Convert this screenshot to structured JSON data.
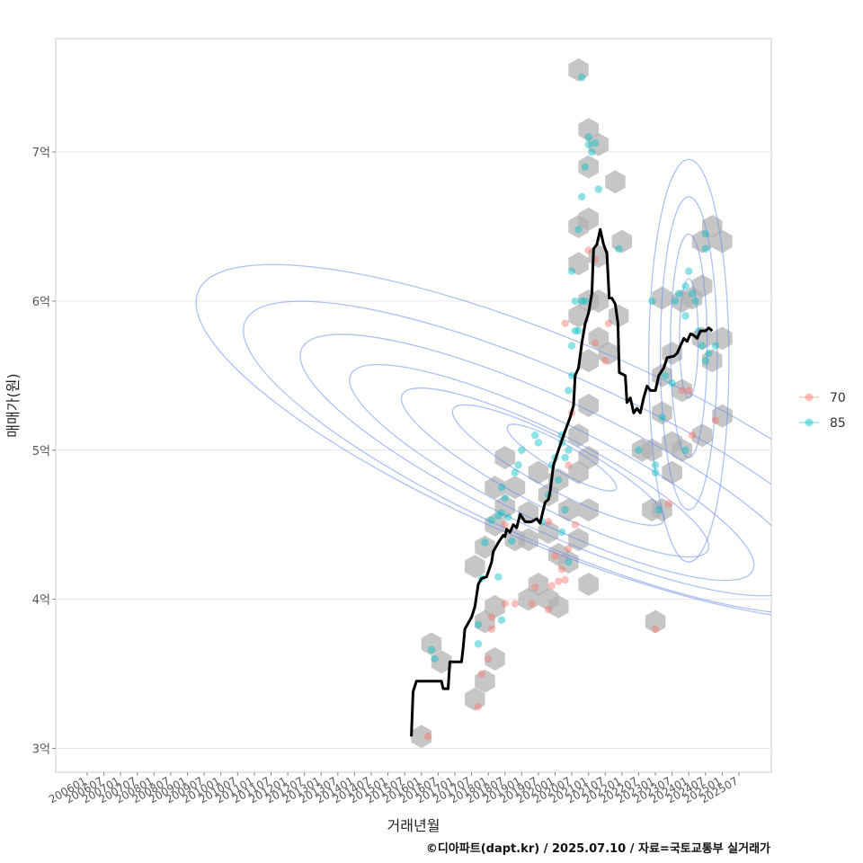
{
  "chart_data": {
    "type": "scatter",
    "xlabel": "거래년월",
    "ylabel": "매매가(원)",
    "x_ticks": [
      "200601",
      "200607",
      "200701",
      "200707",
      "200801",
      "200807",
      "200901",
      "200907",
      "201001",
      "201007",
      "201101",
      "201107",
      "201201",
      "201207",
      "201301",
      "201307",
      "201401",
      "201407",
      "201501",
      "201507",
      "201601",
      "201607",
      "201701",
      "201707",
      "201801",
      "201807",
      "201901",
      "201907",
      "202001",
      "202007",
      "202101",
      "202107",
      "202201",
      "202207",
      "202301",
      "202307",
      "202401",
      "202407",
      "202501",
      "202507"
    ],
    "y_ticks": [
      {
        "value": 3,
        "label": "3억"
      },
      {
        "value": 4,
        "label": "4억"
      },
      {
        "value": 5,
        "label": "5억"
      },
      {
        "value": 6,
        "label": "6억"
      },
      {
        "value": 7,
        "label": "7억"
      }
    ],
    "ylim": [
      2.84,
      7.76
    ],
    "grid": true,
    "legend_position": "right",
    "legend": [
      {
        "name": "70",
        "color": "#F8766D"
      },
      {
        "name": "85",
        "color": "#00BFC4"
      }
    ],
    "colors": {
      "hex": "#b3b3b3",
      "contour": "#6f8ee8",
      "trend": "#000000"
    },
    "hex_bins": [
      [
        2016.0,
        3.08
      ],
      [
        2016.3,
        3.7
      ],
      [
        2016.6,
        3.58
      ],
      [
        2017.6,
        3.33
      ],
      [
        2017.9,
        3.45
      ],
      [
        2018.2,
        3.6
      ],
      [
        2017.9,
        3.85
      ],
      [
        2018.2,
        3.95
      ],
      [
        2017.6,
        4.22
      ],
      [
        2017.9,
        4.35
      ],
      [
        2018.2,
        4.5
      ],
      [
        2018.5,
        4.62
      ],
      [
        2018.8,
        4.75
      ],
      [
        2018.5,
        4.95
      ],
      [
        2018.2,
        4.75
      ],
      [
        2018.8,
        4.4
      ],
      [
        2019.2,
        4.58
      ],
      [
        2019.5,
        4.85
      ],
      [
        2019.8,
        4.7
      ],
      [
        2019.2,
        4.0
      ],
      [
        2019.5,
        4.1
      ],
      [
        2019.8,
        4.0
      ],
      [
        2020.1,
        3.95
      ],
      [
        2020.4,
        4.25
      ],
      [
        2020.7,
        4.4
      ],
      [
        2020.4,
        4.6
      ],
      [
        2020.1,
        4.8
      ],
      [
        2020.7,
        4.85
      ],
      [
        2021.0,
        4.95
      ],
      [
        2021.0,
        4.6
      ],
      [
        2020.7,
        5.1
      ],
      [
        2021.0,
        5.3
      ],
      [
        2021.0,
        5.6
      ],
      [
        2020.7,
        5.9
      ],
      [
        2021.0,
        6.0
      ],
      [
        2021.3,
        6.0
      ],
      [
        2020.7,
        6.25
      ],
      [
        2021.0,
        6.55
      ],
      [
        2021.3,
        6.3
      ],
      [
        2020.7,
        6.5
      ],
      [
        2021.0,
        6.9
      ],
      [
        2021.0,
        7.15
      ],
      [
        2021.3,
        7.05
      ],
      [
        2020.7,
        7.55
      ],
      [
        2021.6,
        5.65
      ],
      [
        2021.9,
        5.9
      ],
      [
        2022.0,
        6.4
      ],
      [
        2021.8,
        6.8
      ],
      [
        2021.0,
        4.1
      ],
      [
        2021.3,
        5.75
      ],
      [
        2023.0,
        3.85
      ],
      [
        2022.9,
        4.6
      ],
      [
        2023.2,
        4.6
      ],
      [
        2022.6,
        5.0
      ],
      [
        2022.9,
        5.0
      ],
      [
        2023.2,
        5.25
      ],
      [
        2023.5,
        5.05
      ],
      [
        2023.8,
        5.0
      ],
      [
        2023.2,
        5.5
      ],
      [
        2023.5,
        5.65
      ],
      [
        2023.2,
        6.02
      ],
      [
        2023.8,
        6.0
      ],
      [
        2024.1,
        6.02
      ],
      [
        2024.4,
        6.1
      ],
      [
        2024.4,
        5.75
      ],
      [
        2024.7,
        5.6
      ],
      [
        2025.0,
        5.75
      ],
      [
        2024.4,
        5.1
      ],
      [
        2025.0,
        5.23
      ],
      [
        2024.4,
        6.4
      ],
      [
        2024.7,
        6.5
      ],
      [
        2025.0,
        6.4
      ],
      [
        2023.5,
        4.85
      ],
      [
        2023.8,
        5.4
      ],
      [
        2019.2,
        4.4
      ],
      [
        2019.8,
        4.45
      ],
      [
        2020.1,
        4.3
      ]
    ],
    "series": [
      {
        "name": "70",
        "points": [
          [
            2016.2,
            3.08
          ],
          [
            2017.7,
            3.28
          ],
          [
            2017.8,
            3.5
          ],
          [
            2018.0,
            3.6
          ],
          [
            2018.1,
            3.8
          ],
          [
            2018.1,
            3.88
          ],
          [
            2018.5,
            3.97
          ],
          [
            2018.8,
            3.97
          ],
          [
            2019.3,
            3.97
          ],
          [
            2019.4,
            4.08
          ],
          [
            2019.8,
            3.93
          ],
          [
            2019.9,
            4.09
          ],
          [
            2020.1,
            4.12
          ],
          [
            2020.2,
            4.2
          ],
          [
            2020.3,
            4.13
          ],
          [
            2020.4,
            4.34
          ],
          [
            2020.0,
            4.29
          ],
          [
            2020.6,
            4.5
          ],
          [
            2019.8,
            4.52
          ],
          [
            2018.5,
            4.5
          ],
          [
            2020.4,
            4.9
          ],
          [
            2021.2,
            5.72
          ],
          [
            2021.2,
            6.28
          ],
          [
            2021.0,
            6.34
          ],
          [
            2021.6,
            5.85
          ],
          [
            2020.5,
            5.25
          ],
          [
            2023.0,
            3.8
          ],
          [
            2023.4,
            4.64
          ],
          [
            2023.8,
            5.4
          ],
          [
            2024.0,
            5.4
          ],
          [
            2024.1,
            5.1
          ],
          [
            2024.8,
            5.2
          ],
          [
            2020.3,
            5.85
          ],
          [
            2021.5,
            5.6
          ]
        ]
      },
      {
        "name": "85",
        "points": [
          [
            2016.3,
            3.66
          ],
          [
            2016.4,
            3.6
          ],
          [
            2017.7,
            3.7
          ],
          [
            2017.7,
            3.83
          ],
          [
            2017.8,
            4.14
          ],
          [
            2017.9,
            4.38
          ],
          [
            2018.1,
            4.53
          ],
          [
            2018.3,
            4.56
          ],
          [
            2018.4,
            4.58
          ],
          [
            2018.5,
            4.68
          ],
          [
            2018.7,
            4.39
          ],
          [
            2018.8,
            4.85
          ],
          [
            2018.9,
            4.9
          ],
          [
            2019.0,
            5.0
          ],
          [
            2019.4,
            5.1
          ],
          [
            2019.5,
            5.05
          ],
          [
            2019.6,
            4.52
          ],
          [
            2019.8,
            4.7
          ],
          [
            2019.9,
            4.9
          ],
          [
            2020.0,
            4.95
          ],
          [
            2020.1,
            4.8
          ],
          [
            2020.2,
            5.05
          ],
          [
            2020.2,
            5.1
          ],
          [
            2020.3,
            4.95
          ],
          [
            2020.3,
            4.6
          ],
          [
            2020.4,
            5.0
          ],
          [
            2020.4,
            5.4
          ],
          [
            2020.5,
            5.5
          ],
          [
            2020.5,
            5.7
          ],
          [
            2020.6,
            5.8
          ],
          [
            2020.6,
            6.0
          ],
          [
            2020.7,
            5.8
          ],
          [
            2020.8,
            6.0
          ],
          [
            2020.9,
            6.0
          ],
          [
            2020.5,
            6.2
          ],
          [
            2020.7,
            6.48
          ],
          [
            2020.8,
            6.7
          ],
          [
            2020.9,
            6.9
          ],
          [
            2021.0,
            7.05
          ],
          [
            2021.0,
            7.1
          ],
          [
            2021.1,
            7.0
          ],
          [
            2021.2,
            7.06
          ],
          [
            2021.3,
            6.75
          ],
          [
            2021.9,
            6.35
          ],
          [
            2020.8,
            7.5
          ],
          [
            2022.5,
            5.0
          ],
          [
            2023.2,
            5.22
          ],
          [
            2023.3,
            5.5
          ],
          [
            2023.5,
            5.45
          ],
          [
            2023.1,
            4.6
          ],
          [
            2023.0,
            4.9
          ],
          [
            2023.0,
            4.85
          ],
          [
            2023.9,
            5.0
          ],
          [
            2023.9,
            5.9
          ],
          [
            2023.6,
            6.0
          ],
          [
            2023.7,
            6.05
          ],
          [
            2023.9,
            6.1
          ],
          [
            2024.1,
            6.05
          ],
          [
            2024.2,
            6.0
          ],
          [
            2024.0,
            6.2
          ],
          [
            2024.5,
            6.35
          ],
          [
            2024.3,
            5.8
          ],
          [
            2024.4,
            5.7
          ],
          [
            2024.5,
            5.6
          ],
          [
            2024.6,
            5.65
          ],
          [
            2024.8,
            5.7
          ],
          [
            2024.5,
            6.45
          ],
          [
            2022.9,
            6.0
          ],
          [
            2020.2,
            4.45
          ],
          [
            2020.4,
            4.25
          ],
          [
            2018.4,
            4.75
          ],
          [
            2018.6,
            4.55
          ],
          [
            2018.4,
            3.86
          ],
          [
            2018.3,
            4.15
          ]
        ]
      }
    ],
    "trend": [
      [
        2015.7,
        3.08
      ],
      [
        2015.75,
        3.38
      ],
      [
        2015.85,
        3.45
      ],
      [
        2016.6,
        3.45
      ],
      [
        2016.65,
        3.4
      ],
      [
        2016.8,
        3.4
      ],
      [
        2016.85,
        3.58
      ],
      [
        2017.2,
        3.58
      ],
      [
        2017.25,
        3.68
      ],
      [
        2017.3,
        3.8
      ],
      [
        2017.5,
        3.88
      ],
      [
        2017.6,
        3.95
      ],
      [
        2017.7,
        4.1
      ],
      [
        2017.8,
        4.14
      ],
      [
        2017.95,
        4.15
      ],
      [
        2018.1,
        4.25
      ],
      [
        2018.15,
        4.32
      ],
      [
        2018.3,
        4.38
      ],
      [
        2018.45,
        4.43
      ],
      [
        2018.5,
        4.42
      ],
      [
        2018.55,
        4.47
      ],
      [
        2018.65,
        4.45
      ],
      [
        2018.75,
        4.5
      ],
      [
        2018.85,
        4.48
      ],
      [
        2018.95,
        4.57
      ],
      [
        2019.1,
        4.52
      ],
      [
        2019.3,
        4.52
      ],
      [
        2019.45,
        4.54
      ],
      [
        2019.55,
        4.51
      ],
      [
        2019.7,
        4.65
      ],
      [
        2019.8,
        4.67
      ],
      [
        2019.85,
        4.72
      ],
      [
        2019.95,
        4.9
      ],
      [
        2020.1,
        5.0
      ],
      [
        2020.3,
        5.13
      ],
      [
        2020.45,
        5.22
      ],
      [
        2020.55,
        5.3
      ],
      [
        2020.6,
        5.5
      ],
      [
        2020.7,
        5.55
      ],
      [
        2020.8,
        5.72
      ],
      [
        2020.9,
        5.85
      ],
      [
        2021.0,
        5.92
      ],
      [
        2021.1,
        6.05
      ],
      [
        2021.15,
        6.35
      ],
      [
        2021.25,
        6.38
      ],
      [
        2021.35,
        6.48
      ],
      [
        2021.45,
        6.38
      ],
      [
        2021.55,
        6.32
      ],
      [
        2021.62,
        6.02
      ],
      [
        2021.7,
        6.02
      ],
      [
        2021.8,
        5.98
      ],
      [
        2021.88,
        5.85
      ],
      [
        2021.92,
        5.52
      ],
      [
        2022.1,
        5.5
      ],
      [
        2022.15,
        5.32
      ],
      [
        2022.25,
        5.35
      ],
      [
        2022.35,
        5.25
      ],
      [
        2022.45,
        5.28
      ],
      [
        2022.55,
        5.25
      ],
      [
        2022.65,
        5.35
      ],
      [
        2022.75,
        5.43
      ],
      [
        2022.85,
        5.4
      ],
      [
        2023.0,
        5.4
      ],
      [
        2023.1,
        5.5
      ],
      [
        2023.25,
        5.55
      ],
      [
        2023.35,
        5.62
      ],
      [
        2023.55,
        5.63
      ],
      [
        2023.65,
        5.65
      ],
      [
        2023.75,
        5.7
      ],
      [
        2023.85,
        5.75
      ],
      [
        2023.95,
        5.73
      ],
      [
        2024.05,
        5.78
      ],
      [
        2024.15,
        5.77
      ],
      [
        2024.25,
        5.75
      ],
      [
        2024.35,
        5.8
      ],
      [
        2024.5,
        5.8
      ],
      [
        2024.6,
        5.82
      ],
      [
        2024.7,
        5.8
      ]
    ],
    "density_contours": [
      {
        "cx": 2020.2,
        "cy": 4.95,
        "rx": 0.4,
        "ry": 0.42,
        "rot": -60
      },
      {
        "cx": 2020.1,
        "cy": 4.9,
        "rx": 0.75,
        "ry": 0.8,
        "rot": -62
      },
      {
        "cx": 2020.0,
        "cy": 4.85,
        "rx": 1.1,
        "ry": 1.15,
        "rot": -63
      },
      {
        "cx": 2019.9,
        "cy": 4.85,
        "rx": 1.5,
        "ry": 1.5,
        "rot": -64
      },
      {
        "cx": 2019.9,
        "cy": 4.9,
        "rx": 1.95,
        "ry": 1.85,
        "rot": -65
      },
      {
        "cx": 2019.9,
        "cy": 4.95,
        "rx": 2.5,
        "ry": 2.25,
        "rot": -66
      },
      {
        "cx": 2020.0,
        "cy": 5.05,
        "rx": 3.05,
        "ry": 2.6,
        "rot": -67
      },
      {
        "cx": 2024.0,
        "cy": 5.75,
        "rx": 0.28,
        "ry": 0.4,
        "rot": 0
      },
      {
        "cx": 2024.0,
        "cy": 5.7,
        "rx": 0.55,
        "ry": 0.75,
        "rot": 0
      },
      {
        "cx": 2024.0,
        "cy": 5.65,
        "rx": 0.85,
        "ry": 1.05,
        "rot": 0
      },
      {
        "cx": 2024.0,
        "cy": 5.6,
        "rx": 1.2,
        "ry": 1.35,
        "rot": 0
      }
    ]
  },
  "caption": "©디아파트(dapt.kr) / 2025.07.10 / 자료=국토교통부 실거래가"
}
